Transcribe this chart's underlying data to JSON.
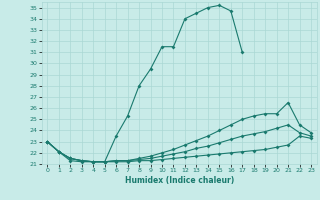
{
  "xlabel": "Humidex (Indice chaleur)",
  "xlim": [
    -0.5,
    23.5
  ],
  "ylim": [
    21.0,
    35.5
  ],
  "yticks": [
    21,
    22,
    23,
    24,
    25,
    26,
    27,
    28,
    29,
    30,
    31,
    32,
    33,
    34,
    35
  ],
  "xticks": [
    0,
    1,
    2,
    3,
    4,
    5,
    6,
    7,
    8,
    9,
    10,
    11,
    12,
    13,
    14,
    15,
    16,
    17,
    18,
    19,
    20,
    21,
    22,
    23
  ],
  "background_color": "#c8ebe8",
  "grid_color": "#aad8d4",
  "line_color": "#1a7a6e",
  "line1_x": [
    0,
    1,
    2,
    3,
    4,
    5,
    6,
    7,
    8,
    9,
    10,
    11,
    12,
    13,
    14,
    15,
    16,
    17
  ],
  "line1_y": [
    23.0,
    22.1,
    21.3,
    21.2,
    21.2,
    21.2,
    23.5,
    25.3,
    28.0,
    29.5,
    31.5,
    31.5,
    34.0,
    34.5,
    35.0,
    35.2,
    34.7,
    31.0
  ],
  "line2_x": [
    0,
    1,
    2,
    3,
    4,
    5,
    6,
    7,
    8,
    9,
    10,
    11,
    12,
    13,
    14,
    15,
    16,
    17,
    18,
    19,
    20,
    21,
    22,
    23
  ],
  "line2_y": [
    23.0,
    22.1,
    21.5,
    21.3,
    21.2,
    21.2,
    21.3,
    21.3,
    21.5,
    21.7,
    22.0,
    22.3,
    22.7,
    23.1,
    23.5,
    24.0,
    24.5,
    25.0,
    25.3,
    25.5,
    25.5,
    26.5,
    24.5,
    23.8
  ],
  "line3_x": [
    0,
    1,
    2,
    3,
    4,
    5,
    6,
    7,
    8,
    9,
    10,
    11,
    12,
    13,
    14,
    15,
    16,
    17,
    18,
    19,
    20,
    21,
    22,
    23
  ],
  "line3_y": [
    23.0,
    22.1,
    21.5,
    21.3,
    21.2,
    21.2,
    21.3,
    21.3,
    21.4,
    21.5,
    21.7,
    21.9,
    22.1,
    22.4,
    22.6,
    22.9,
    23.2,
    23.5,
    23.7,
    23.9,
    24.2,
    24.5,
    23.8,
    23.5
  ],
  "line4_x": [
    0,
    1,
    2,
    3,
    4,
    5,
    6,
    7,
    8,
    9,
    10,
    11,
    12,
    13,
    14,
    15,
    16,
    17,
    18,
    19,
    20,
    21,
    22,
    23
  ],
  "line4_y": [
    23.0,
    22.1,
    21.5,
    21.3,
    21.2,
    21.2,
    21.2,
    21.2,
    21.3,
    21.3,
    21.4,
    21.5,
    21.6,
    21.7,
    21.8,
    21.9,
    22.0,
    22.1,
    22.2,
    22.3,
    22.5,
    22.7,
    23.5,
    23.3
  ]
}
